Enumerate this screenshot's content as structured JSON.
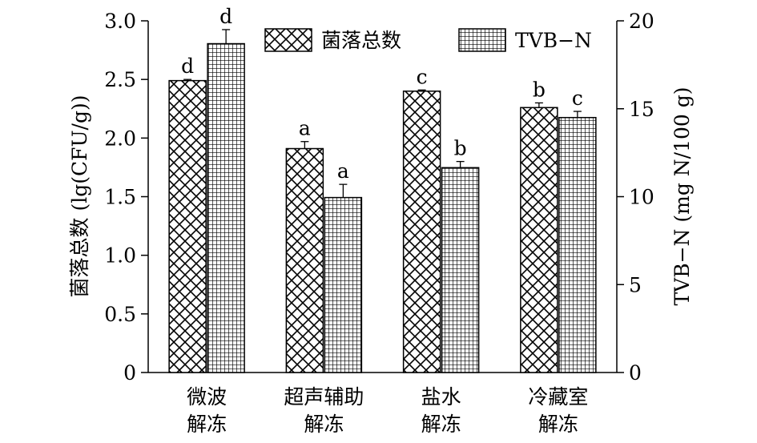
{
  "chart_data": {
    "type": "bar",
    "categories": [
      [
        "微波",
        "解冻"
      ],
      [
        "超声辅助",
        "解冻"
      ],
      [
        "盐水",
        "解冻"
      ],
      [
        "冷藏室",
        "解冻"
      ]
    ],
    "ylabel_left": "菌落总数 (lg(CFU/g))",
    "ylabel_right": "TVB−N (mg N/100 g)",
    "ylim_left": [
      0,
      3.0
    ],
    "ylim_right": [
      0,
      20
    ],
    "yticks_left": [
      "0",
      "0.5",
      "1.0",
      "1.5",
      "2.0",
      "2.5",
      "3.0"
    ],
    "yticks_right": [
      "0",
      "5",
      "10",
      "15",
      "20"
    ],
    "series": [
      {
        "name": "菌落总数",
        "axis": "left",
        "pattern": "crosshatch",
        "values": [
          2.49,
          1.91,
          2.4,
          2.26
        ],
        "errors": [
          0.01,
          0.06,
          0.01,
          0.04
        ],
        "letters": [
          "d",
          "a",
          "c",
          "b"
        ]
      },
      {
        "name": "TVB−N",
        "axis": "right",
        "pattern": "grid",
        "values": [
          18.7,
          9.95,
          11.65,
          14.5
        ],
        "errors": [
          0.8,
          0.75,
          0.35,
          0.35
        ],
        "letters": [
          "d",
          "a",
          "b",
          "c"
        ]
      }
    ],
    "legend_position": "top",
    "grid": false
  }
}
